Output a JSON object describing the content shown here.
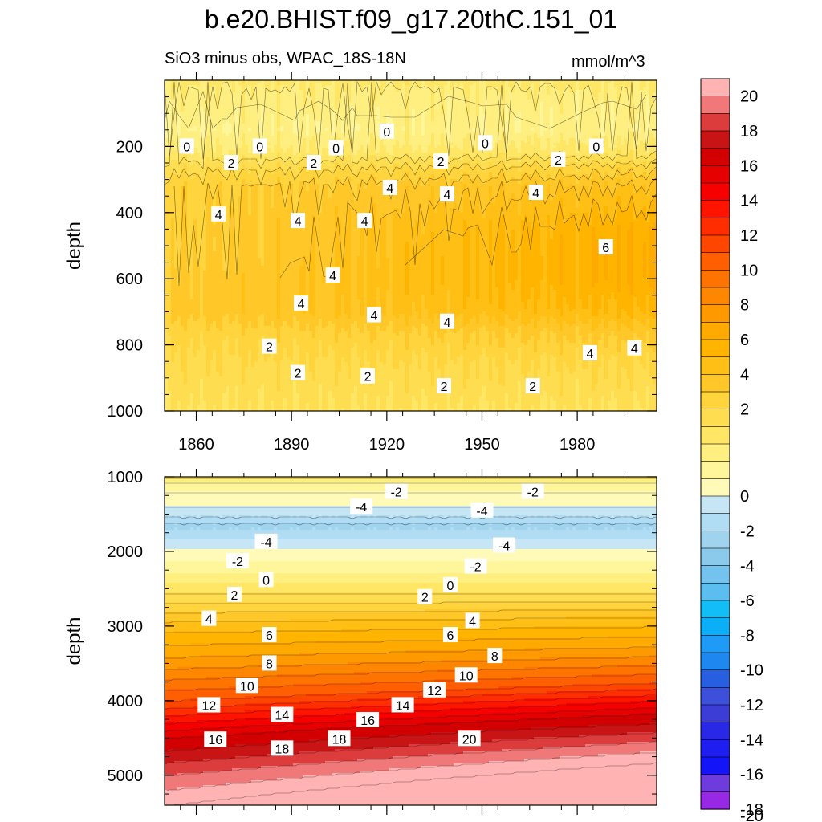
{
  "title": "b.e20.BHIST.f09_g17.20thC.151_01",
  "subtitle_left": "SiO3 minus obs, WPAC_18S-18N",
  "subtitle_right": "mmol/m^3",
  "chart_data": [
    {
      "type": "contour",
      "panel": "upper",
      "ylabel": "depth",
      "xlim": [
        1850,
        2005
      ],
      "ylim": [
        1000,
        0
      ],
      "x_ticks": [
        1860,
        1890,
        1920,
        1950,
        1980
      ],
      "y_ticks": [
        200,
        400,
        600,
        800,
        1000
      ],
      "contour_interval": 1,
      "depth_profile": [
        {
          "depth": 0,
          "value": 0.4
        },
        {
          "depth": 40,
          "value": -0.3
        },
        {
          "depth": 150,
          "value": -0.8
        },
        {
          "depth": 215,
          "value": 0.3
        },
        {
          "depth": 260,
          "value": 2.0
        },
        {
          "depth": 320,
          "value": 3.5
        },
        {
          "depth": 450,
          "value": 4.5
        },
        {
          "depth": 600,
          "value": 4.7
        },
        {
          "depth": 700,
          "value": 4.3
        },
        {
          "depth": 760,
          "value": 3.0
        },
        {
          "depth": 850,
          "value": 2.0
        },
        {
          "depth": 1000,
          "value": 1.0
        }
      ],
      "contour_labels": [
        {
          "text": "0",
          "x": 1857,
          "y": 200
        },
        {
          "text": "0",
          "x": 1880,
          "y": 200
        },
        {
          "text": "0",
          "x": 1904,
          "y": 205
        },
        {
          "text": "0",
          "x": 1920,
          "y": 155
        },
        {
          "text": "0",
          "x": 1951,
          "y": 190
        },
        {
          "text": "0",
          "x": 1986,
          "y": 200
        },
        {
          "text": "2",
          "x": 1871,
          "y": 250
        },
        {
          "text": "2",
          "x": 1897,
          "y": 250
        },
        {
          "text": "2",
          "x": 1937,
          "y": 245
        },
        {
          "text": "2",
          "x": 1974,
          "y": 240
        },
        {
          "text": "4",
          "x": 1867,
          "y": 405
        },
        {
          "text": "4",
          "x": 1892,
          "y": 425
        },
        {
          "text": "4",
          "x": 1913,
          "y": 425
        },
        {
          "text": "4",
          "x": 1921,
          "y": 325
        },
        {
          "text": "4",
          "x": 1939,
          "y": 345
        },
        {
          "text": "4",
          "x": 1967,
          "y": 340
        },
        {
          "text": "6",
          "x": 1989,
          "y": 505
        },
        {
          "text": "4",
          "x": 1903,
          "y": 590
        },
        {
          "text": "4",
          "x": 1893,
          "y": 675
        },
        {
          "text": "4",
          "x": 1916,
          "y": 710
        },
        {
          "text": "4",
          "x": 1939,
          "y": 730
        },
        {
          "text": "4",
          "x": 1984,
          "y": 825
        },
        {
          "text": "4",
          "x": 1998,
          "y": 810
        },
        {
          "text": "2",
          "x": 1883,
          "y": 805
        },
        {
          "text": "2",
          "x": 1892,
          "y": 885
        },
        {
          "text": "2",
          "x": 1914,
          "y": 895
        },
        {
          "text": "2",
          "x": 1938,
          "y": 925
        },
        {
          "text": "2",
          "x": 1966,
          "y": 925
        }
      ]
    },
    {
      "type": "contour",
      "panel": "lower",
      "ylabel": "depth",
      "xlim": [
        1850,
        2005
      ],
      "ylim": [
        5400,
        1000
      ],
      "x_ticks": [
        1860,
        1890,
        1920,
        1950,
        1980
      ],
      "y_ticks": [
        1000,
        2000,
        3000,
        4000,
        5000
      ],
      "contour_interval": 1,
      "depth_profile": [
        {
          "depth": 1000,
          "value": 0.3
        },
        {
          "depth": 1100,
          "value": -1.5
        },
        {
          "depth": 1500,
          "value": -3.5
        },
        {
          "depth": 1650,
          "value": -5.2
        },
        {
          "depth": 1900,
          "value": -3.5
        },
        {
          "depth": 2200,
          "value": -1.5
        },
        {
          "depth": 2500,
          "value": 0.5
        },
        {
          "depth": 3000,
          "value": 4.5
        },
        {
          "depth": 3500,
          "value": 7.5
        },
        {
          "depth": 4000,
          "value": 11.0
        },
        {
          "depth": 4500,
          "value": 16.0
        },
        {
          "depth": 5000,
          "value": 19.0
        },
        {
          "depth": 5400,
          "value": 21.0
        }
      ],
      "contour_labels": [
        {
          "text": "-2",
          "x": 1923,
          "y": 1200
        },
        {
          "text": "-2",
          "x": 1966,
          "y": 1200
        },
        {
          "text": "-4",
          "x": 1912,
          "y": 1400
        },
        {
          "text": "-4",
          "x": 1950,
          "y": 1450
        },
        {
          "text": "-4",
          "x": 1882,
          "y": 1870
        },
        {
          "text": "-4",
          "x": 1957,
          "y": 1920
        },
        {
          "text": "-2",
          "x": 1873,
          "y": 2130
        },
        {
          "text": "-2",
          "x": 1948,
          "y": 2200
        },
        {
          "text": "0",
          "x": 1882,
          "y": 2380
        },
        {
          "text": "0",
          "x": 1940,
          "y": 2450
        },
        {
          "text": "2",
          "x": 1872,
          "y": 2580
        },
        {
          "text": "2",
          "x": 1932,
          "y": 2610
        },
        {
          "text": "4",
          "x": 1864,
          "y": 2900
        },
        {
          "text": "4",
          "x": 1947,
          "y": 2930
        },
        {
          "text": "6",
          "x": 1883,
          "y": 3120
        },
        {
          "text": "6",
          "x": 1940,
          "y": 3120
        },
        {
          "text": "8",
          "x": 1883,
          "y": 3500
        },
        {
          "text": "8",
          "x": 1954,
          "y": 3400
        },
        {
          "text": "10",
          "x": 1876,
          "y": 3800
        },
        {
          "text": "10",
          "x": 1945,
          "y": 3660
        },
        {
          "text": "12",
          "x": 1864,
          "y": 4060
        },
        {
          "text": "12",
          "x": 1935,
          "y": 3860
        },
        {
          "text": "14",
          "x": 1887,
          "y": 4190
        },
        {
          "text": "14",
          "x": 1925,
          "y": 4060
        },
        {
          "text": "16",
          "x": 1866,
          "y": 4520
        },
        {
          "text": "16",
          "x": 1914,
          "y": 4260
        },
        {
          "text": "18",
          "x": 1887,
          "y": 4640
        },
        {
          "text": "18",
          "x": 1905,
          "y": 4510
        },
        {
          "text": "20",
          "x": 1946,
          "y": 4510
        }
      ]
    }
  ],
  "colorbar": {
    "levels": [
      20,
      18,
      16,
      14,
      12,
      10,
      8,
      6,
      4,
      2,
      0,
      -2,
      -4,
      -6,
      -8,
      -10,
      -12,
      -14,
      -16,
      -18,
      -20
    ],
    "labels": [
      "20",
      "18",
      "16",
      "14",
      "12",
      "10",
      "8",
      "6",
      "4",
      "2",
      "0",
      "-2",
      "-4",
      "-6",
      "-8",
      "-10",
      "-12",
      "-14",
      "-16",
      "-18",
      "-20"
    ],
    "colors": [
      "#FFB3B3",
      "#F07878",
      "#DC3C3C",
      "#C81414",
      "#D20000",
      "#E60000",
      "#F70000",
      "#FF1400",
      "#FF2D00",
      "#FF4600",
      "#FF5F00",
      "#FF7300",
      "#FF8700",
      "#FF9900",
      "#FFAA00",
      "#FFB500",
      "#FFBF14",
      "#FFC828",
      "#FFD43C",
      "#FFDD50",
      "#FFE665",
      "#FFEE80",
      "#FFF59A",
      "#FFFAB8",
      "#C6E6F5",
      "#B0DDF3",
      "#9FD3EE",
      "#8CCAEC",
      "#73C3EE",
      "#5BBDF0",
      "#12BEF5",
      "#0AAFF7",
      "#1E9BF7",
      "#1E87F0",
      "#285FE1",
      "#3C50DC",
      "#3C3CD7",
      "#2828E6",
      "#1E1EF0",
      "#1414F8",
      "#6E3CDC",
      "#9628E6"
    ]
  }
}
